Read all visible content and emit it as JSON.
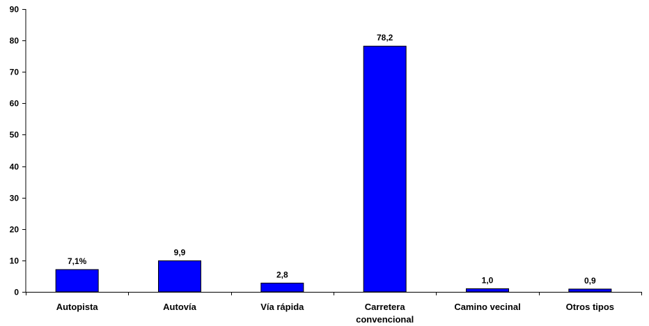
{
  "chart_data": {
    "type": "bar",
    "title": "",
    "xlabel": "",
    "ylabel": "",
    "categories": [
      [
        "Autopista"
      ],
      [
        "Autovía"
      ],
      [
        "Vía rápida"
      ],
      [
        "Carretera",
        "convencional"
      ],
      [
        "Camino vecinal"
      ],
      [
        "Otros tipos"
      ]
    ],
    "values": [
      7.1,
      9.9,
      2.8,
      78.2,
      1.0,
      0.9
    ],
    "data_labels": [
      "7,1%",
      "9,9",
      "2,8",
      "78,2",
      "1,0",
      "0,9"
    ],
    "ylim": [
      0,
      90
    ],
    "yticks": [
      0,
      10,
      20,
      30,
      40,
      50,
      60,
      70,
      80,
      90
    ],
    "grid": false,
    "legend": "none",
    "colors": {
      "bar_fill": "#0000ff",
      "bar_stroke": "#000000",
      "axis": "#000000"
    }
  }
}
